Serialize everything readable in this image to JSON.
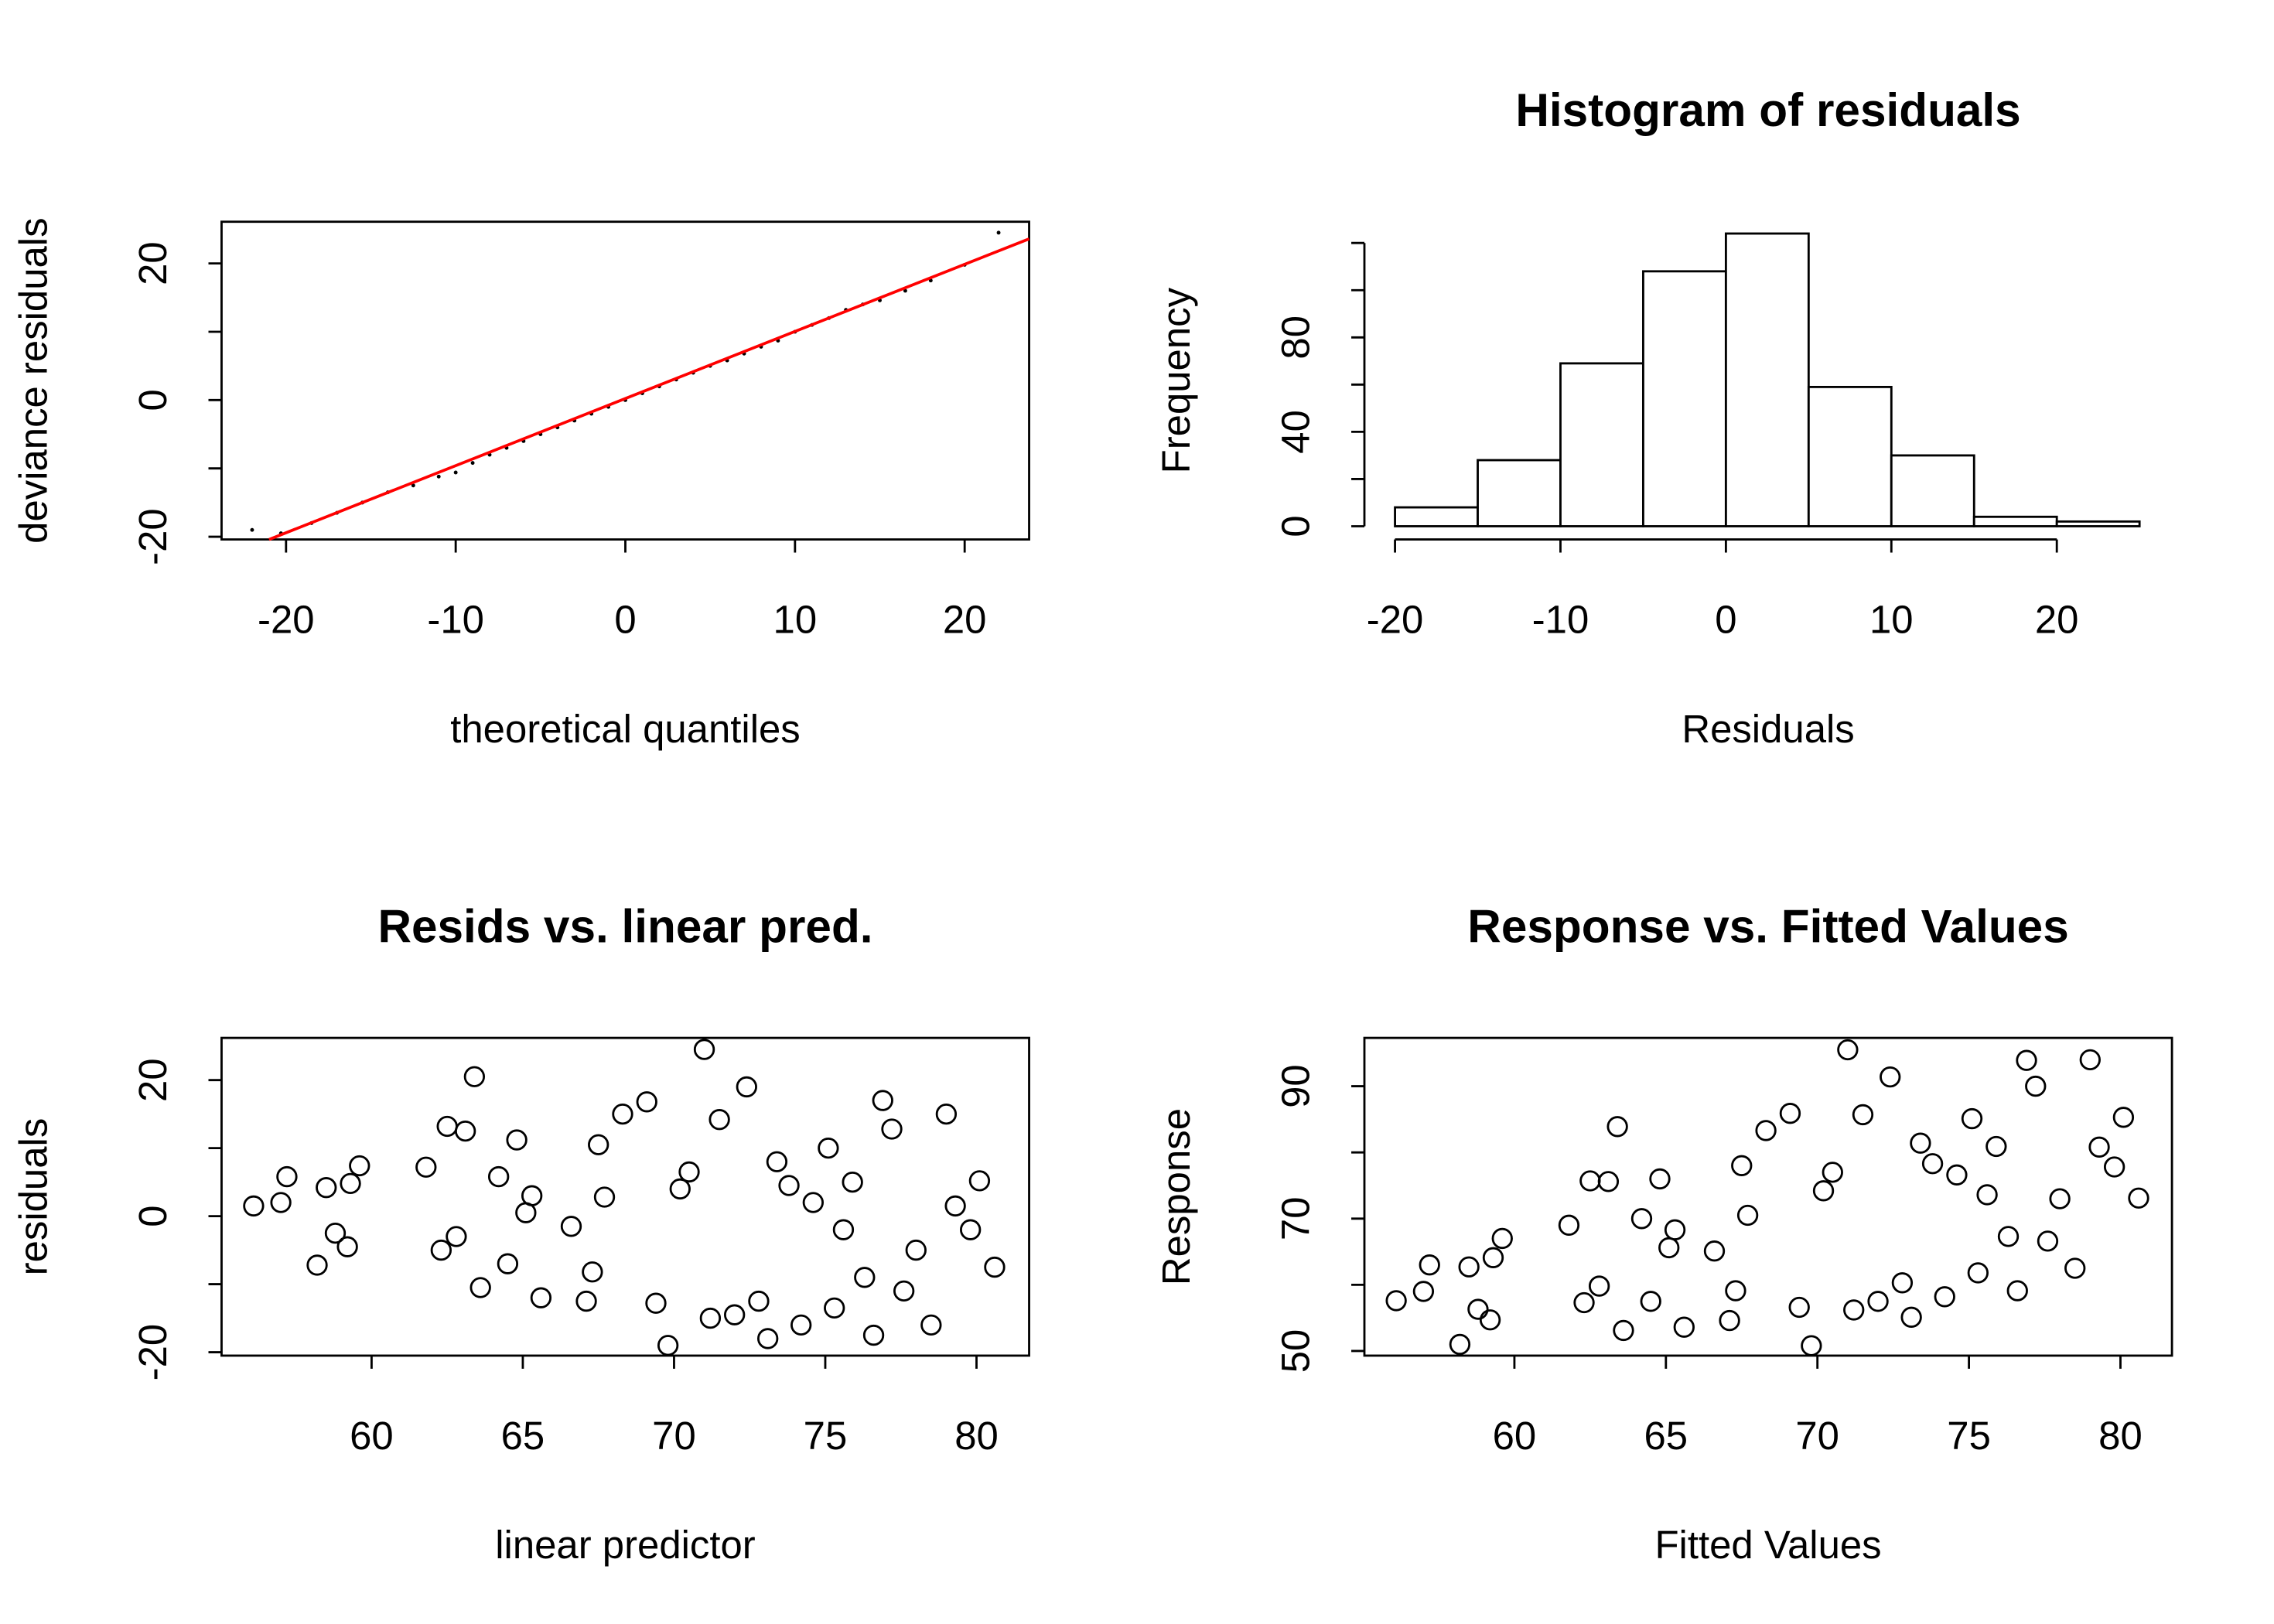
{
  "chart_data": [
    {
      "type": "qq",
      "xlabel": "theoretical quantiles",
      "ylabel": "deviance residuals",
      "x": [
        -22,
        -20.3,
        -18.5,
        -17,
        -15.5,
        -14,
        -12.5,
        -11,
        -10,
        -9,
        -8,
        -7,
        -6,
        -5,
        -4,
        -3,
        -2,
        -1,
        0,
        1,
        2,
        3,
        4,
        5,
        6,
        7,
        8,
        9,
        10,
        11,
        12,
        13,
        14,
        15,
        16.5,
        18,
        20,
        22
      ],
      "values": [
        -19,
        -19.5,
        -18,
        -16.5,
        -15,
        -13.5,
        -12.5,
        -11.2,
        -10.6,
        -9.2,
        -8,
        -7,
        -6,
        -5,
        -4,
        -3,
        -2,
        -1,
        0,
        1,
        2,
        3,
        4,
        5,
        5.8,
        6.8,
        7.8,
        8.7,
        10,
        11,
        12,
        13.2,
        14,
        14.6,
        16,
        17.5,
        19.8,
        24.5
      ],
      "color": "#000000",
      "ref_line": {
        "x": [
          -21,
          23.8
        ],
        "y": [
          -20.4,
          23.6
        ],
        "color": "#ff0000"
      },
      "xlim": [
        -23.8,
        23.8
      ],
      "ylim": [
        -20.4,
        26.1
      ],
      "xticks": [
        -20,
        -10,
        0,
        10,
        20
      ],
      "yticks": [
        -20,
        0,
        20
      ],
      "yminor": [
        -10,
        10
      ],
      "box": true
    },
    {
      "type": "histogram",
      "title": "Histogram of residuals",
      "xlabel": "Residuals",
      "ylabel": "Frequency",
      "bins": [
        -20,
        -15,
        -10,
        -5,
        0,
        5,
        10,
        15,
        20,
        25
      ],
      "values": [
        8,
        28,
        69,
        108,
        124,
        59,
        30,
        4,
        2
      ],
      "color": "#ffffff",
      "xlim": [
        -21.85,
        26.96
      ],
      "ylim": [
        -5.6,
        129
      ],
      "xticks": [
        -20,
        -10,
        0,
        10,
        20
      ],
      "yticks": [
        0,
        40,
        80
      ],
      "yminor": [
        20,
        60,
        100,
        120
      ],
      "box": false
    },
    {
      "type": "scatter",
      "title": "Resids vs. linear pred.",
      "xlabel": "linear predictor",
      "ylabel": "residuals",
      "x": [
        56.1,
        57,
        57.2,
        58.2,
        58.5,
        58.8,
        59.2,
        59.3,
        59.6,
        61.8,
        62.3,
        62.5,
        62.8,
        63.1,
        63.4,
        63.6,
        64.2,
        64.5,
        64.8,
        65.1,
        65.3,
        65.6,
        66.6,
        67.1,
        67.3,
        67.5,
        67.7,
        68.3,
        69.1,
        69.4,
        69.8,
        70.2,
        70.5,
        71.0,
        71.2,
        71.5,
        72.0,
        72.4,
        72.8,
        73.1,
        73.4,
        73.8,
        74.2,
        74.6,
        75.1,
        75.3,
        75.6,
        75.9,
        76.3,
        76.6,
        76.9,
        77.2,
        77.6,
        78.0,
        78.5,
        79.0,
        79.3,
        79.8,
        80.1,
        80.6
      ],
      "values": [
        1.5,
        2,
        5.8,
        -7.2,
        4.2,
        -2.5,
        -4.5,
        4.8,
        7.4,
        7.2,
        -5,
        13.2,
        -3,
        12.5,
        20.5,
        -10.5,
        5.8,
        -7,
        11.2,
        0.5,
        3,
        -12,
        -1.5,
        -12.5,
        -8.2,
        10.5,
        2.8,
        15,
        16.8,
        -12.8,
        -19,
        4,
        6.5,
        24.5,
        -15,
        14.2,
        -14.5,
        19,
        -12.5,
        -18,
        8,
        4.5,
        -16,
        2,
        10,
        -13.5,
        -2,
        5,
        -9,
        -17.5,
        17,
        12.8,
        -11,
        -5,
        -16,
        15,
        1.5,
        -2,
        5.2,
        -7.5
      ],
      "color": "#000000",
      "xlim": [
        55.04,
        81.74
      ],
      "ylim": [
        -20.5,
        26.2
      ],
      "xticks": [
        60,
        65,
        70,
        75,
        80
      ],
      "yticks": [
        -20,
        0,
        20
      ],
      "yminor": [
        -10,
        10
      ],
      "box": true
    },
    {
      "type": "scatter",
      "title": "Response vs. Fitted Values",
      "xlabel": "Fitted Values",
      "ylabel": "Response",
      "x": [
        56.1,
        57,
        57.2,
        58.2,
        58.5,
        58.8,
        59.2,
        59.3,
        59.6,
        61.8,
        62.3,
        62.5,
        62.8,
        63.1,
        63.4,
        63.6,
        64.2,
        64.5,
        64.8,
        65.1,
        65.3,
        65.6,
        66.6,
        67.1,
        67.3,
        67.5,
        67.7,
        68.3,
        69.1,
        69.4,
        69.8,
        70.2,
        70.5,
        71.0,
        71.2,
        71.5,
        72.0,
        72.4,
        72.8,
        73.1,
        73.4,
        73.8,
        74.2,
        74.6,
        75.1,
        75.3,
        75.6,
        75.9,
        76.3,
        76.6,
        76.9,
        77.2,
        77.6,
        78.0,
        78.5,
        79.0,
        79.3,
        79.8,
        80.1,
        80.6
      ],
      "values": [
        57.6,
        59,
        63,
        51,
        62.7,
        56.3,
        54.7,
        64.1,
        67,
        69,
        57.3,
        75.7,
        59.8,
        75.6,
        83.9,
        53.1,
        70,
        57.5,
        76,
        65.6,
        68.3,
        53.6,
        65.1,
        54.6,
        59.1,
        78,
        70.5,
        83.3,
        85.9,
        56.6,
        50.8,
        74.2,
        77,
        95.5,
        56.2,
        85.7,
        57.5,
        91.4,
        60.3,
        55.1,
        81.4,
        78.3,
        58.2,
        76.6,
        85.1,
        61.8,
        73.6,
        80.9,
        67.3,
        59.1,
        93.9,
        90,
        66.6,
        73,
        62.5,
        94,
        80.8,
        77.8,
        85.3,
        73.1
      ],
      "color": "#000000",
      "xlim": [
        55.05,
        81.7
      ],
      "ylim": [
        49.3,
        97.3
      ],
      "xticks": [
        60,
        65,
        70,
        75,
        80
      ],
      "yticks": [
        50,
        70,
        90
      ],
      "yminor": [
        60,
        80
      ],
      "box": true
    }
  ]
}
